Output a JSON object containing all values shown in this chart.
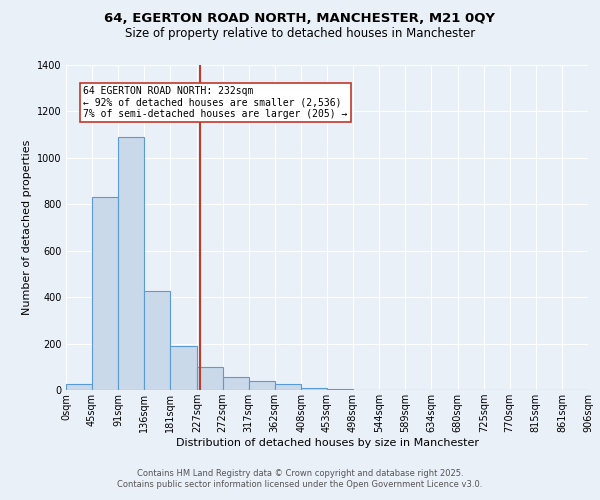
{
  "title": "64, EGERTON ROAD NORTH, MANCHESTER, M21 0QY",
  "subtitle": "Size of property relative to detached houses in Manchester",
  "xlabel": "Distribution of detached houses by size in Manchester",
  "ylabel": "Number of detached properties",
  "bar_edges": [
    0,
    45,
    91,
    136,
    181,
    227,
    272,
    317,
    362,
    408,
    453,
    498,
    544,
    589,
    634,
    680,
    725,
    770,
    815,
    861,
    906
  ],
  "bar_heights": [
    25,
    830,
    1090,
    425,
    190,
    100,
    55,
    40,
    25,
    10,
    5,
    0,
    0,
    0,
    0,
    0,
    0,
    0,
    0,
    0
  ],
  "bar_color": "#c9d9ea",
  "bar_edge_color": "#5b9bd5",
  "property_size": 232,
  "vline_color": "#c0392b",
  "annotation_text": "64 EGERTON ROAD NORTH: 232sqm\n← 92% of detached houses are smaller (2,536)\n7% of semi-detached houses are larger (205) →",
  "annotation_box_color": "white",
  "annotation_box_edge_color": "#c0392b",
  "ylim": [
    0,
    1400
  ],
  "yticks": [
    0,
    200,
    400,
    600,
    800,
    1000,
    1200,
    1400
  ],
  "xtick_labels": [
    "0sqm",
    "45sqm",
    "91sqm",
    "136sqm",
    "181sqm",
    "227sqm",
    "272sqm",
    "317sqm",
    "362sqm",
    "408sqm",
    "453sqm",
    "498sqm",
    "544sqm",
    "589sqm",
    "634sqm",
    "680sqm",
    "725sqm",
    "770sqm",
    "815sqm",
    "861sqm",
    "906sqm"
  ],
  "footer_line1": "Contains HM Land Registry data © Crown copyright and database right 2025.",
  "footer_line2": "Contains public sector information licensed under the Open Government Licence v3.0.",
  "bg_color": "#eaf0f8",
  "plot_bg_color": "#eaf0f8",
  "grid_color": "white",
  "title_fontsize": 9.5,
  "subtitle_fontsize": 8.5,
  "axis_label_fontsize": 8,
  "tick_fontsize": 7,
  "annotation_fontsize": 7,
  "footer_fontsize": 6
}
